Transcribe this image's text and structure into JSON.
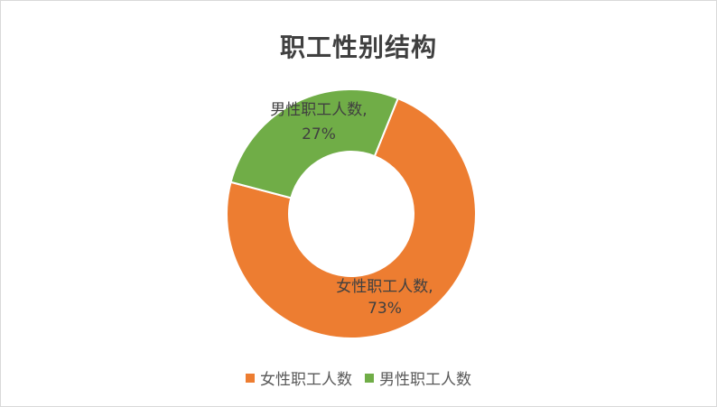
{
  "chart_data": {
    "type": "pie",
    "donut": true,
    "title": "职工性别结构",
    "legend_position": "bottom",
    "slices": [
      {
        "name": "女性职工人数",
        "value": 73,
        "label": "73%",
        "color": "#ED7D31"
      },
      {
        "name": "男性职工人数",
        "value": 27,
        "label": "27%",
        "color": "#70AD47"
      }
    ]
  }
}
